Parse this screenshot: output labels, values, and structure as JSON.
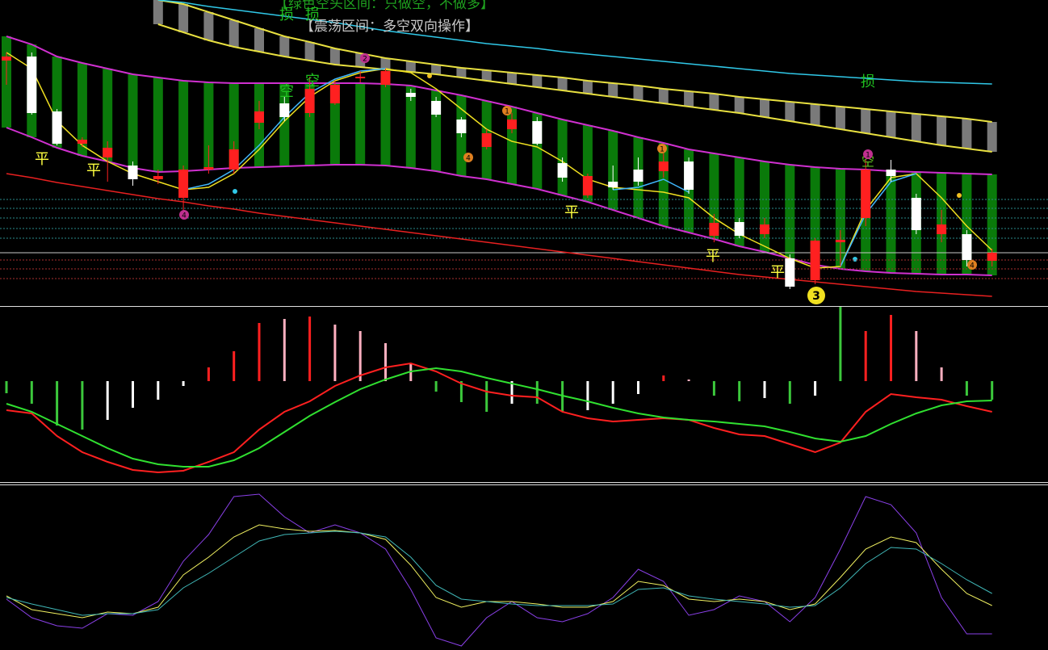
{
  "chart_data": [
    {
      "type": "candlestick",
      "ylim": [
        0,
        380
      ],
      "up_color": "#ff2020",
      "down_color": "#ffffff",
      "open": [
        305,
        310,
        242,
        202,
        185,
        175,
        158,
        135,
        170,
        170,
        228,
        252,
        240,
        252,
        283,
        275,
        265,
        255,
        232,
        198,
        220,
        230,
        178,
        138,
        155,
        170,
        168,
        180,
        88,
        105,
        90,
        60,
        33,
        80,
        110,
        170,
        135,
        90,
        90,
        57
      ],
      "close": [
        310,
        240,
        202,
        207,
        197,
        158,
        162,
        170,
        173,
        195,
        242,
        235,
        270,
        275,
        285,
        292,
        260,
        238,
        215,
        215,
        232,
        202,
        160,
        162,
        148,
        155,
        180,
        145,
        104,
        88,
        102,
        25,
        82,
        83,
        170,
        162,
        95,
        102,
        58,
        67
      ],
      "high": [
        315,
        315,
        245,
        210,
        205,
        180,
        170,
        175,
        200,
        205,
        255,
        260,
        285,
        280,
        292,
        295,
        270,
        260,
        235,
        220,
        240,
        235,
        185,
        165,
        175,
        185,
        190,
        185,
        115,
        110,
        110,
        65,
        85,
        95,
        182,
        182,
        140,
        120,
        95,
        72
      ],
      "low": [
        275,
        238,
        200,
        198,
        155,
        150,
        152,
        112,
        165,
        165,
        220,
        230,
        235,
        250,
        278,
        272,
        255,
        235,
        210,
        195,
        215,
        200,
        155,
        135,
        145,
        150,
        160,
        140,
        80,
        85,
        85,
        22,
        28,
        50,
        100,
        155,
        90,
        80,
        50,
        50
      ],
      "bands": [
        {
          "color": "#0a7a0a",
          "edge": "#d030d0",
          "upper": [
            335,
            325,
            310,
            302,
            295,
            288,
            284,
            280,
            278,
            277,
            277,
            277,
            277,
            277,
            277,
            276,
            274,
            268,
            262,
            255,
            248,
            240,
            232,
            225,
            218,
            210,
            203,
            195,
            190,
            185,
            180,
            176,
            173,
            171,
            170,
            168,
            167,
            166,
            165,
            164
          ],
          "lower": [
            222,
            210,
            197,
            187,
            180,
            172,
            167,
            168,
            170,
            172,
            173,
            174,
            175,
            176,
            176,
            175,
            172,
            168,
            162,
            158,
            152,
            146,
            138,
            130,
            120,
            110,
            100,
            92,
            84,
            75,
            68,
            60,
            52,
            47,
            44,
            42,
            41,
            40,
            40,
            39
          ]
        },
        {
          "color": "#7a7a7a",
          "edge": "#e8e040",
          "upper": [
            null,
            null,
            null,
            null,
            null,
            null,
            380,
            375,
            365,
            355,
            345,
            335,
            328,
            320,
            314,
            308,
            304,
            300,
            296,
            293,
            290,
            287,
            284,
            280,
            277,
            274,
            270,
            267,
            264,
            260,
            257,
            254,
            251,
            248,
            245,
            242,
            239,
            236,
            233,
            229
          ],
          "lower": [
            null,
            null,
            null,
            null,
            null,
            null,
            350,
            340,
            330,
            322,
            316,
            310,
            305,
            300,
            297,
            294,
            291,
            288,
            284,
            280,
            276,
            272,
            268,
            264,
            260,
            256,
            252,
            248,
            244,
            240,
            235,
            230,
            225,
            220,
            215,
            210,
            205,
            200,
            196,
            192
          ]
        }
      ],
      "lines": [
        {
          "color": "#30c8e8",
          "values": [
            null,
            null,
            null,
            null,
            null,
            null,
            380,
            377,
            372,
            368,
            364,
            360,
            356,
            352,
            347,
            342,
            338,
            334,
            330,
            326,
            323,
            320,
            316,
            313,
            310,
            307,
            304,
            301,
            298,
            295,
            292,
            289,
            287,
            285,
            283,
            281,
            279,
            278,
            277,
            276
          ]
        },
        {
          "color": "#e82020",
          "values": [
            165,
            160,
            154,
            149,
            144,
            139,
            134,
            130,
            125,
            121,
            116,
            112,
            108,
            104,
            100,
            96,
            92,
            88,
            84,
            80,
            76,
            72,
            68,
            64,
            60,
            56,
            52,
            48,
            44,
            40,
            37,
            34,
            31,
            28,
            25,
            22,
            19,
            17,
            15,
            13
          ]
        },
        {
          "color": "#f0e020",
          "values": [
            315,
            295,
            230,
            200,
            180,
            165,
            155,
            145,
            148,
            165,
            195,
            230,
            260,
            280,
            290,
            295,
            290,
            270,
            245,
            220,
            205,
            198,
            180,
            158,
            148,
            145,
            142,
            135,
            110,
            90,
            75,
            60,
            48,
            50,
            120,
            160,
            165,
            135,
            100,
            70
          ]
        },
        {
          "color": "#40b8ff",
          "values": [
            null,
            null,
            null,
            null,
            null,
            null,
            null,
            145,
            152,
            170,
            200,
            235,
            265,
            282,
            292,
            295,
            null,
            null,
            null,
            null,
            null,
            null,
            null,
            null,
            145,
            148,
            158,
            142,
            null,
            null,
            null,
            null,
            null,
            50,
            115,
            155,
            165,
            null,
            null,
            null
          ]
        }
      ],
      "levels": [
        {
          "value": 133,
          "color": "#2a8a8a"
        },
        {
          "value": 122,
          "color": "#2a8a8a"
        },
        {
          "value": 110,
          "color": "#2a8a8a"
        },
        {
          "value": 97,
          "color": "#2a8a8a"
        },
        {
          "value": 85,
          "color": "#2a8a8a"
        },
        {
          "value": 67,
          "color": "#c8c8c8"
        },
        {
          "value": 58,
          "color": "#a83030"
        },
        {
          "value": 47,
          "color": "#a83030"
        },
        {
          "value": 35,
          "color": "#a83030"
        }
      ],
      "annotations": [
        {
          "text": "【绿色空头区间：只做空，不做多】",
          "color": "#1fa01f"
        },
        {
          "text": "【震荡区间：多空双向操作】",
          "color": "#c8c8c8"
        },
        {
          "text": "损",
          "color": "#20c020"
        },
        {
          "text": "损",
          "color": "#20c020"
        },
        {
          "text": "损",
          "color": "#20c020"
        },
        {
          "text": "空",
          "color": "#20c020"
        },
        {
          "text": "空",
          "color": "#20c020"
        },
        {
          "text": "空",
          "color": "#60c020"
        },
        {
          "text": "平",
          "color": "#ffff40"
        },
        {
          "text": "平",
          "color": "#ffff40"
        },
        {
          "text": "平",
          "color": "#ffff40"
        },
        {
          "text": "平",
          "color": "#ffff40"
        },
        {
          "text": "平",
          "color": "#ffff40"
        },
        {
          "text": "3",
          "color": "#000000"
        },
        {
          "text": "2",
          "color": "#000000"
        },
        {
          "text": "4",
          "color": "#000000"
        },
        {
          "text": "1",
          "color": "#000000"
        },
        {
          "text": "4",
          "color": "#000000"
        },
        {
          "text": "1",
          "color": "#000000"
        },
        {
          "text": "1",
          "color": "#000000"
        },
        {
          "text": "4",
          "color": "#000000"
        }
      ]
    },
    {
      "type": "macd",
      "ylim": [
        -125,
        92
      ],
      "histogram": {
        "values": [
          -15,
          -28,
          -55,
          -60,
          -48,
          -33,
          -23,
          -6,
          17,
          37,
          72,
          77,
          80,
          70,
          62,
          47,
          22,
          -13,
          -26,
          -38,
          -28,
          -28,
          -38,
          -36,
          -28,
          -16,
          7,
          2,
          -18,
          -25,
          -21,
          -28,
          -18,
          92,
          62,
          82,
          62,
          17,
          -18,
          -23
        ],
        "colors": [
          "#3cc83c",
          "#3cc83c",
          "#3cc83c",
          "#3cc83c",
          "#ffffff",
          "#ffffff",
          "#ffffff",
          "#ffffff",
          "#ff2020",
          "#ff2020",
          "#ff2020",
          "#ffb0c0",
          "#ff2020",
          "#ffb0c0",
          "#ffb0c0",
          "#ffb0c0",
          "#ffb0c0",
          "#3cc83c",
          "#3cc83c",
          "#3cc83c",
          "#ffffff",
          "#3cc83c",
          "#3cc83c",
          "#ffffff",
          "#ffffff",
          "#ffffff",
          "#ff2020",
          "#ffb0c0",
          "#3cc83c",
          "#3cc83c",
          "#ffffff",
          "#3cc83c",
          "#ffffff",
          "#3cc83c",
          "#ff2020",
          "#ff2020",
          "#ffb0c0",
          "#ffb0c0",
          "#3cc83c",
          "#3cc83c"
        ]
      },
      "series": [
        {
          "color": "#ff2020",
          "values": [
            -36,
            -40,
            -68,
            -88,
            -100,
            -110,
            -113,
            -111,
            -100,
            -88,
            -60,
            -38,
            -25,
            -6,
            7,
            17,
            22,
            12,
            -3,
            -13,
            -18,
            -20,
            -38,
            -46,
            -50,
            -48,
            -46,
            -48,
            -58,
            -66,
            -68,
            -78,
            -88,
            -76,
            -38,
            -16,
            -20,
            -23,
            -31,
            -38
          ]
        },
        {
          "color": "#30e030",
          "values": [
            -28,
            -38,
            -53,
            -68,
            -83,
            -96,
            -103,
            -106,
            -106,
            -98,
            -83,
            -63,
            -43,
            -26,
            -10,
            2,
            12,
            16,
            12,
            4,
            -3,
            -10,
            -18,
            -25,
            -33,
            -40,
            -45,
            -48,
            -50,
            -53,
            -56,
            -63,
            -71,
            -75,
            -68,
            -53,
            -40,
            -30,
            -25,
            -24
          ]
        }
      ]
    },
    {
      "type": "line",
      "ylim": [
        0,
        205
      ],
      "series": [
        {
          "color": "#8a40e8",
          "values": [
            63,
            40,
            30,
            27,
            45,
            43,
            60,
            110,
            143,
            190,
            193,
            165,
            145,
            155,
            145,
            125,
            75,
            15,
            5,
            40,
            60,
            40,
            35,
            45,
            65,
            100,
            85,
            43,
            50,
            67,
            60,
            35,
            65,
            125,
            190,
            180,
            145,
            65,
            20,
            20
          ]
        },
        {
          "color": "#f0f060",
          "values": [
            67,
            50,
            45,
            40,
            47,
            45,
            53,
            93,
            115,
            140,
            155,
            150,
            147,
            148,
            145,
            137,
            105,
            65,
            53,
            60,
            60,
            57,
            53,
            53,
            60,
            85,
            80,
            63,
            60,
            63,
            60,
            50,
            57,
            90,
            125,
            140,
            133,
            100,
            70,
            55
          ]
        },
        {
          "color": "#40b8b8",
          "values": [
            65,
            57,
            50,
            43,
            45,
            45,
            50,
            77,
            95,
            115,
            135,
            143,
            145,
            147,
            145,
            140,
            115,
            80,
            63,
            60,
            57,
            55,
            55,
            55,
            57,
            75,
            77,
            67,
            63,
            60,
            57,
            53,
            55,
            77,
            107,
            127,
            125,
            107,
            87,
            70
          ]
        }
      ]
    }
  ]
}
